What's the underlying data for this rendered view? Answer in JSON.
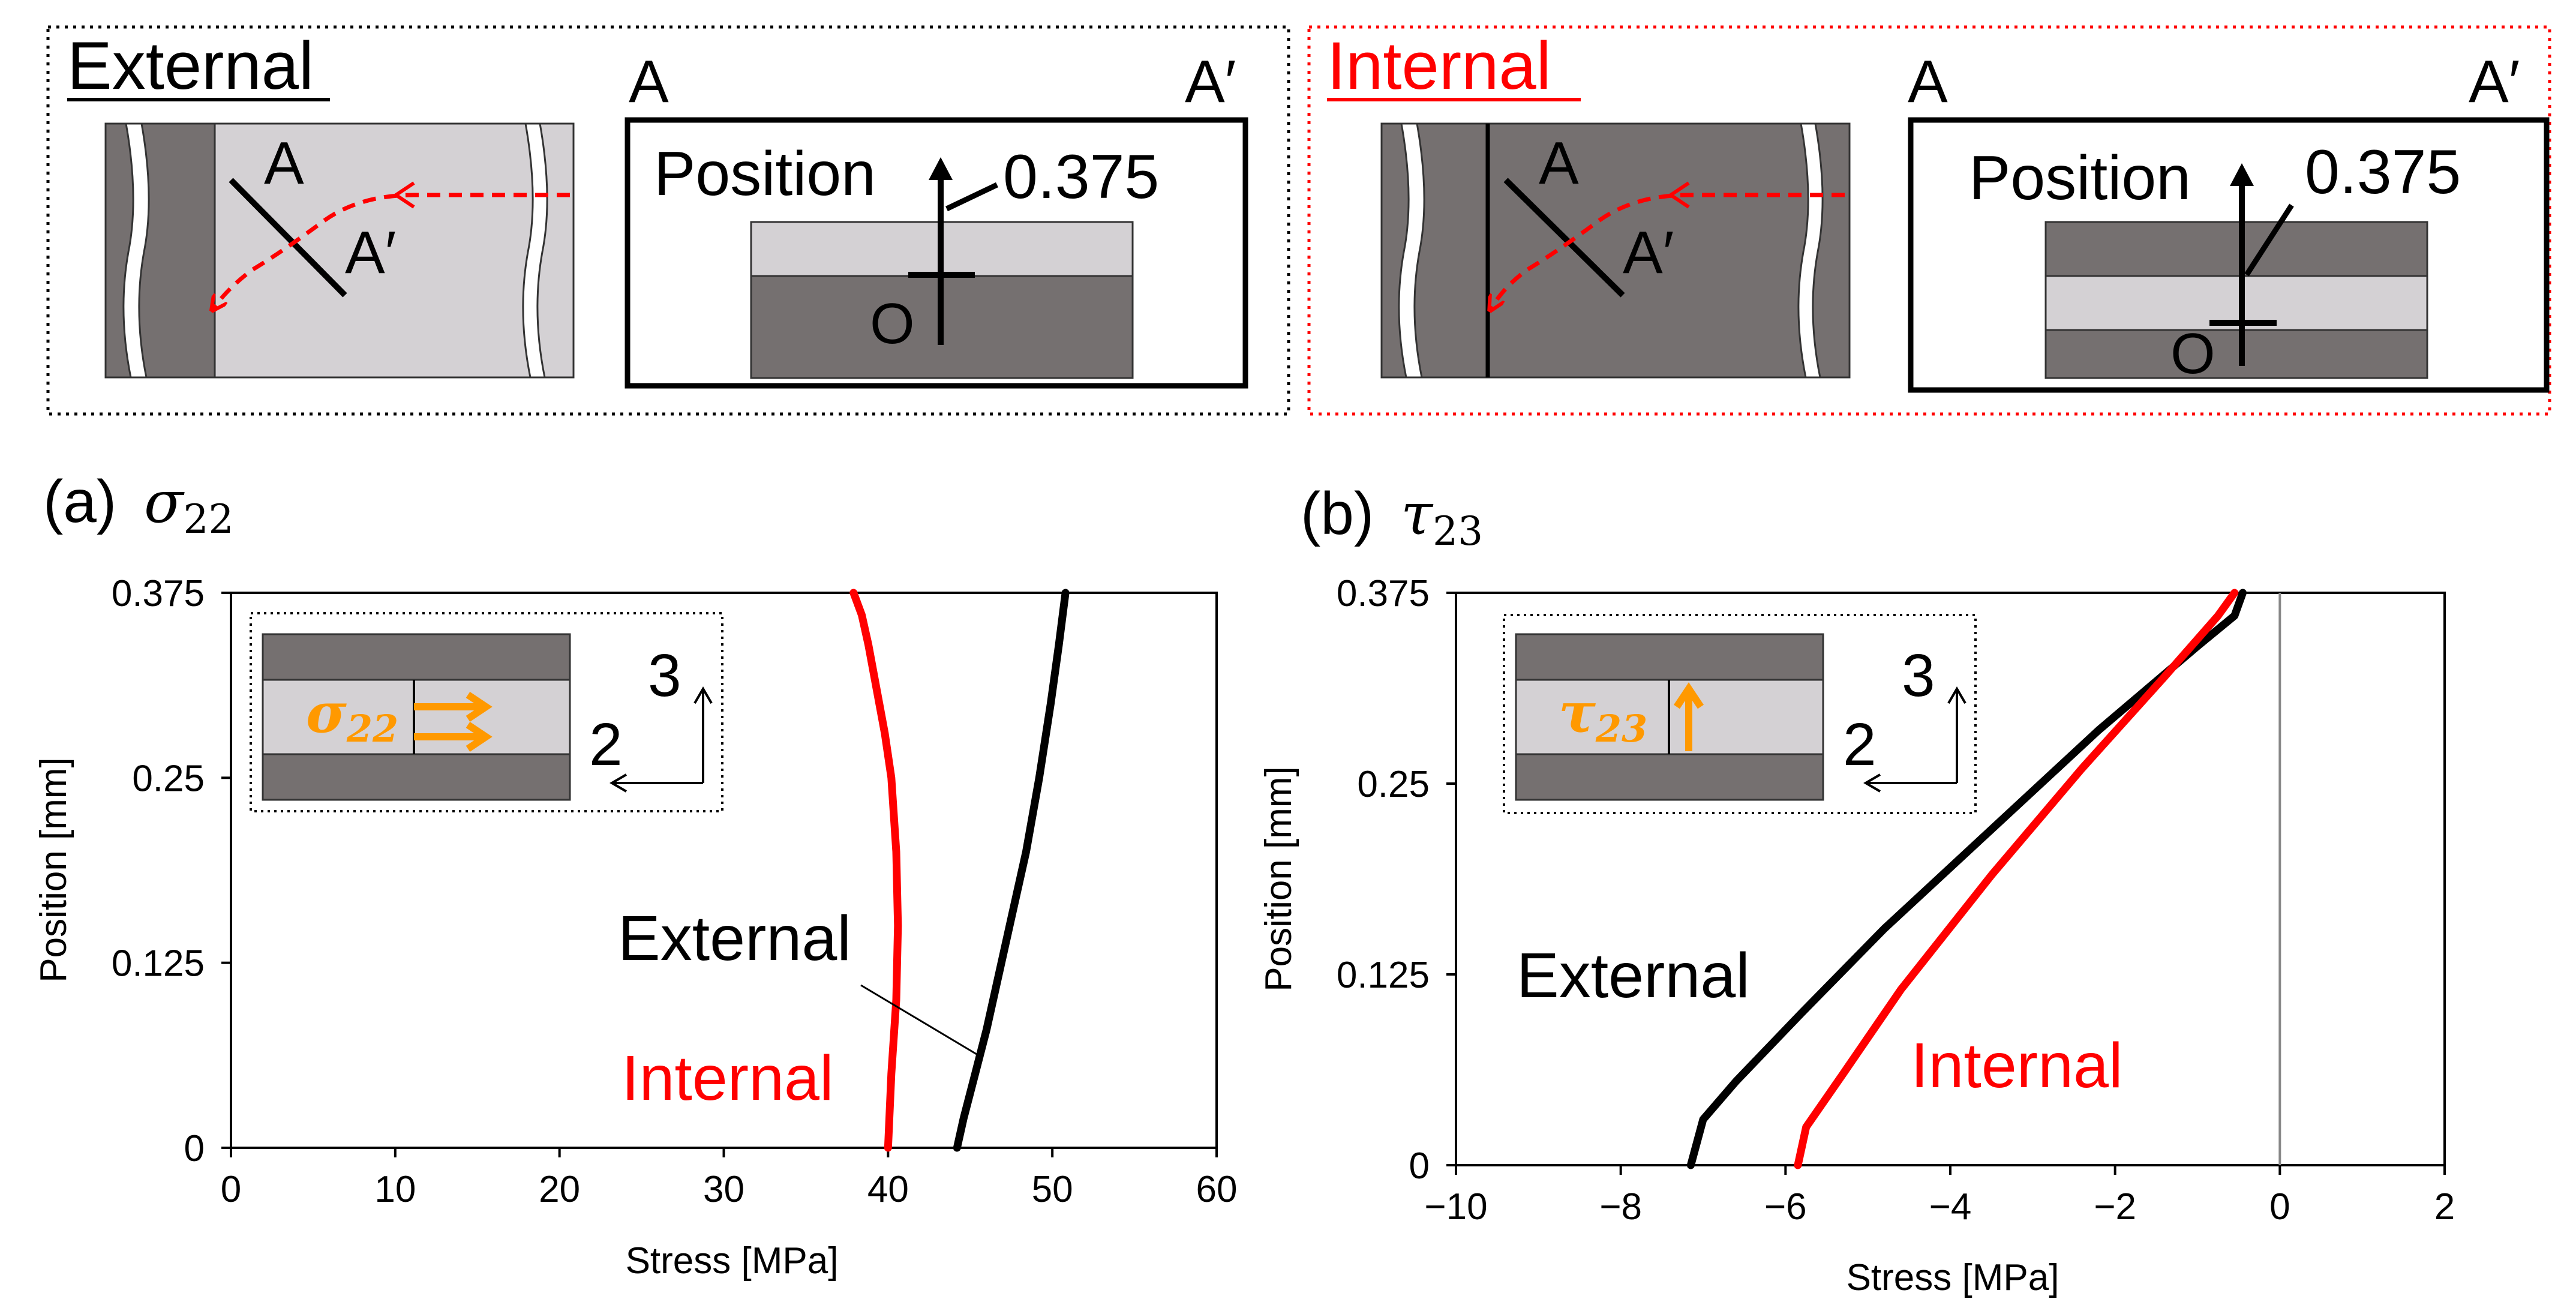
{
  "diagrams": {
    "external": {
      "title": "External",
      "labels": {
        "section_start": "A",
        "section_end": "A′",
        "cross_a": "A",
        "cross_a_prime": "A′",
        "position": "Position",
        "value": "0.375",
        "origin": "O"
      }
    },
    "internal": {
      "title": "Internal",
      "labels": {
        "section_start": "A",
        "section_end": "A′",
        "cross_a": "A",
        "cross_a_prime": "A′",
        "position": "Position",
        "value": "0.375",
        "origin": "O"
      }
    }
  },
  "colors": {
    "ply_dark": "#757070",
    "ply_light": "#d4d1d4",
    "red": "#ff0000",
    "orange": "#ff9900",
    "black": "#000000"
  },
  "chart_data": [
    {
      "type": "line",
      "panel_label": "(a)",
      "symbol": "σ",
      "subscript": "22",
      "xlabel": "Stress [MPa]",
      "ylabel": "Position [mm]",
      "xlim": [
        0,
        60
      ],
      "ylim": [
        0,
        0.375
      ],
      "xticks": [
        "0",
        "10",
        "20",
        "30",
        "40",
        "50",
        "60"
      ],
      "yticks": [
        "0",
        "0.125",
        "0.25",
        "0.375"
      ],
      "inset": {
        "label": "σ22",
        "axis_vertical": "3",
        "axis_horizontal": "2"
      },
      "annotations": {
        "external": "External",
        "internal": "Internal"
      },
      "series": [
        {
          "name": "External",
          "color": "#000000",
          "x": [
            44.2,
            44.6,
            45.3,
            46.0,
            46.8,
            47.6,
            48.4,
            49.2,
            49.9,
            50.4,
            50.8
          ],
          "y": [
            0,
            0.02,
            0.05,
            0.08,
            0.12,
            0.16,
            0.2,
            0.25,
            0.3,
            0.34,
            0.375
          ]
        },
        {
          "name": "Internal",
          "color": "#ff0000",
          "x": [
            40.0,
            40.2,
            40.5,
            40.6,
            40.5,
            40.2,
            39.8,
            39.3,
            38.8,
            38.4,
            37.9
          ],
          "y": [
            0,
            0.05,
            0.1,
            0.15,
            0.2,
            0.25,
            0.28,
            0.31,
            0.34,
            0.36,
            0.375
          ]
        }
      ]
    },
    {
      "type": "line",
      "panel_label": "(b)",
      "symbol": "τ",
      "subscript": "23",
      "xlabel": "Stress [MPa]",
      "ylabel": "Position [mm]",
      "xlim": [
        -10,
        2
      ],
      "ylim": [
        0,
        0.375
      ],
      "xticks": [
        "−10",
        "−8",
        "−6",
        "−4",
        "−2",
        "0",
        "2"
      ],
      "yticks": [
        "0",
        "0.125",
        "0.25",
        "0.375"
      ],
      "inset": {
        "label": "τ23",
        "axis_vertical": "3",
        "axis_horizontal": "2"
      },
      "annotations": {
        "external": "External",
        "internal": "Internal"
      },
      "series": [
        {
          "name": "External",
          "color": "#000000",
          "x": [
            -7.15,
            -7.0,
            -6.6,
            -5.8,
            -4.8,
            -3.5,
            -2.2,
            -1.0,
            -0.55,
            -0.45
          ],
          "y": [
            0,
            0.03,
            0.055,
            0.1,
            0.155,
            0.22,
            0.285,
            0.34,
            0.36,
            0.375
          ]
        },
        {
          "name": "Internal",
          "color": "#ff0000",
          "x": [
            -5.85,
            -5.75,
            -5.3,
            -4.6,
            -3.5,
            -2.4,
            -1.4,
            -0.75,
            -0.55
          ],
          "y": [
            0,
            0.025,
            0.06,
            0.115,
            0.19,
            0.26,
            0.32,
            0.36,
            0.375
          ]
        }
      ]
    }
  ]
}
